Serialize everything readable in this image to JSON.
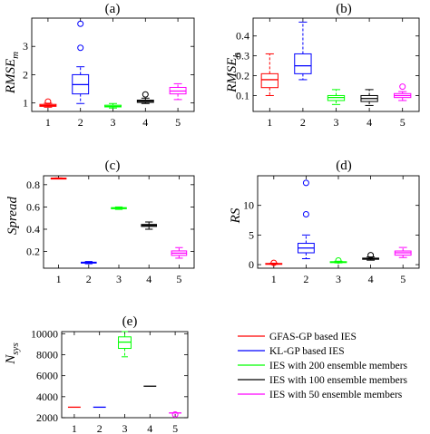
{
  "chart_data": [
    {
      "type": "box",
      "title": "(a)",
      "ylabel": "RMSE",
      "ylabel_sub": "m",
      "categories": [
        "1",
        "2",
        "3",
        "4",
        "5"
      ],
      "ylim": [
        0.7,
        4.0
      ],
      "yticks": [
        1,
        2,
        3
      ],
      "boxes": [
        {
          "min": 0.85,
          "q1": 0.88,
          "median": 0.91,
          "q3": 0.95,
          "max": 0.99,
          "outliers": [
            1.05
          ]
        },
        {
          "min": 0.98,
          "q1": 1.32,
          "median": 1.65,
          "q3": 2.0,
          "max": 2.28,
          "outliers": [
            2.95,
            3.8
          ]
        },
        {
          "min": 0.82,
          "q1": 0.86,
          "median": 0.88,
          "q3": 0.92,
          "max": 0.98,
          "outliers": []
        },
        {
          "min": 0.98,
          "q1": 1.02,
          "median": 1.06,
          "q3": 1.1,
          "max": 1.17,
          "outliers": [
            1.3
          ]
        },
        {
          "min": 1.12,
          "q1": 1.32,
          "median": 1.42,
          "q3": 1.55,
          "max": 1.68,
          "outliers": []
        }
      ]
    },
    {
      "type": "box",
      "title": "(b)",
      "ylabel": "RMSE",
      "ylabel_sub": "h",
      "categories": [
        "1",
        "2",
        "3",
        "4",
        "5"
      ],
      "ylim": [
        0.02,
        0.49
      ],
      "yticks": [
        0.1,
        0.2,
        0.3,
        0.4
      ],
      "boxes": [
        {
          "min": 0.1,
          "q1": 0.14,
          "median": 0.18,
          "q3": 0.21,
          "max": 0.31,
          "outliers": []
        },
        {
          "min": 0.18,
          "q1": 0.21,
          "median": 0.25,
          "q3": 0.31,
          "max": 0.47,
          "outliers": []
        },
        {
          "min": 0.055,
          "q1": 0.075,
          "median": 0.09,
          "q3": 0.1,
          "max": 0.13,
          "outliers": []
        },
        {
          "min": 0.05,
          "q1": 0.07,
          "median": 0.085,
          "q3": 0.1,
          "max": 0.13,
          "outliers": []
        },
        {
          "min": 0.075,
          "q1": 0.09,
          "median": 0.1,
          "q3": 0.11,
          "max": 0.12,
          "outliers": [
            0.145
          ]
        }
      ]
    },
    {
      "type": "box",
      "title": "(c)",
      "ylabel": "Spread",
      "ylabel_sub": "",
      "categories": [
        "1",
        "2",
        "3",
        "4",
        "5"
      ],
      "ylim": [
        0.05,
        0.88
      ],
      "yticks": [
        0.2,
        0.4,
        0.6,
        0.8
      ],
      "boxes": [
        {
          "min": 0.855,
          "q1": 0.857,
          "median": 0.858,
          "q3": 0.859,
          "max": 0.861,
          "outliers": []
        },
        {
          "min": 0.09,
          "q1": 0.096,
          "median": 0.1,
          "q3": 0.104,
          "max": 0.11,
          "outliers": []
        },
        {
          "min": 0.578,
          "q1": 0.584,
          "median": 0.59,
          "q3": 0.594,
          "max": 0.6,
          "outliers": []
        },
        {
          "min": 0.4,
          "q1": 0.425,
          "median": 0.435,
          "q3": 0.443,
          "max": 0.465,
          "outliers": []
        },
        {
          "min": 0.14,
          "q1": 0.165,
          "median": 0.185,
          "q3": 0.205,
          "max": 0.235,
          "outliers": []
        }
      ]
    },
    {
      "type": "box",
      "title": "(d)",
      "ylabel": "RS",
      "ylabel_sub": "",
      "categories": [
        "1",
        "2",
        "3",
        "4",
        "5"
      ],
      "ylim": [
        -0.6,
        15.0
      ],
      "yticks": [
        0,
        5,
        10
      ],
      "boxes": [
        {
          "min": 0.05,
          "q1": 0.1,
          "median": 0.15,
          "q3": 0.2,
          "max": 0.25,
          "outliers": [
            0.3
          ]
        },
        {
          "min": 1.0,
          "q1": 2.0,
          "median": 2.8,
          "q3": 3.6,
          "max": 5.0,
          "outliers": [
            8.5,
            13.8
          ]
        },
        {
          "min": 0.3,
          "q1": 0.38,
          "median": 0.45,
          "q3": 0.5,
          "max": 0.58,
          "outliers": [
            0.7
          ]
        },
        {
          "min": 0.75,
          "q1": 0.9,
          "median": 1.0,
          "q3": 1.1,
          "max": 1.3,
          "outliers": [
            1.6
          ]
        },
        {
          "min": 1.2,
          "q1": 1.6,
          "median": 2.0,
          "q3": 2.3,
          "max": 2.9,
          "outliers": []
        }
      ]
    },
    {
      "type": "box",
      "title": "(e)",
      "ylabel": "N",
      "ylabel_sub": "sys",
      "categories": [
        "1",
        "2",
        "3",
        "4",
        "5"
      ],
      "ylim": [
        2000,
        10200
      ],
      "yticks": [
        2000,
        4000,
        6000,
        8000,
        10000
      ],
      "boxes": [
        {
          "min": 3000,
          "q1": 3000,
          "median": 3000,
          "q3": 3000,
          "max": 3000,
          "outliers": []
        },
        {
          "min": 3000,
          "q1": 3000,
          "median": 3000,
          "q3": 3000,
          "max": 3000,
          "outliers": []
        },
        {
          "min": 7800,
          "q1": 8600,
          "median": 9200,
          "q3": 9700,
          "max": 10200,
          "outliers": []
        },
        {
          "min": 5000,
          "q1": 5000,
          "median": 5000,
          "q3": 5000,
          "max": 5000,
          "outliers": []
        },
        {
          "min": 2450,
          "q1": 2450,
          "median": 2450,
          "q3": 2450,
          "max": 2450,
          "outliers": [
            2300
          ]
        }
      ]
    }
  ],
  "legend": {
    "items": [
      {
        "label": "GFAS-GP based IES",
        "color": "#ff0000"
      },
      {
        "label": "KL-GP based IES",
        "color": "#0000ff"
      },
      {
        "label": "IES with 200 ensemble members",
        "color": "#00ff00"
      },
      {
        "label": "IES with 100 ensemble members",
        "color": "#000000"
      },
      {
        "label": "IES with 50 ensemble members",
        "color": "#ff00ff"
      }
    ]
  },
  "series_colors": [
    "#ff0000",
    "#0000ff",
    "#00ff00",
    "#000000",
    "#ff00ff"
  ]
}
